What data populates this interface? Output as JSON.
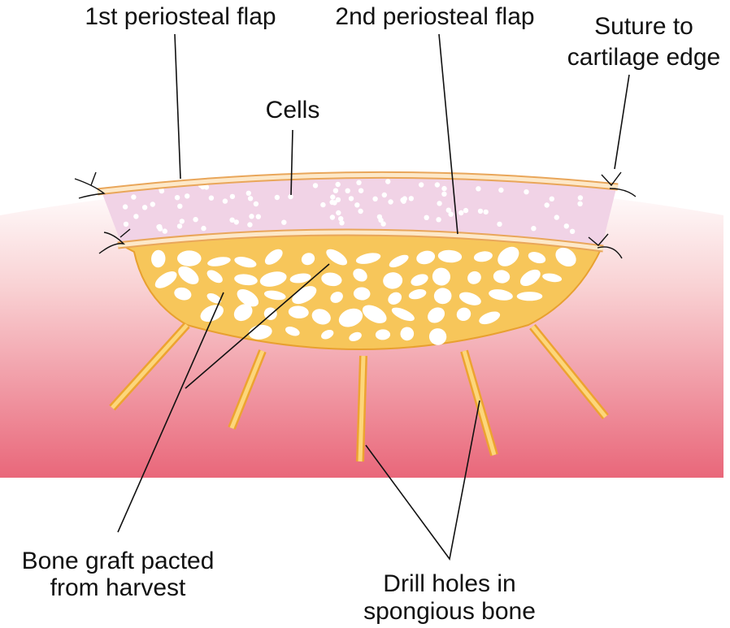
{
  "labels": {
    "flap1": "1st periosteal flap",
    "flap2": "2nd periosteal flap",
    "suture": {
      "lines": [
        "Suture to",
        "cartilage edge"
      ]
    },
    "cells": "Cells",
    "bone_graft": {
      "lines": [
        "Bone graft pacted",
        "from harvest"
      ]
    },
    "drill_holes": {
      "lines": [
        "Drill holes in",
        "spongious bone"
      ]
    }
  }
}
